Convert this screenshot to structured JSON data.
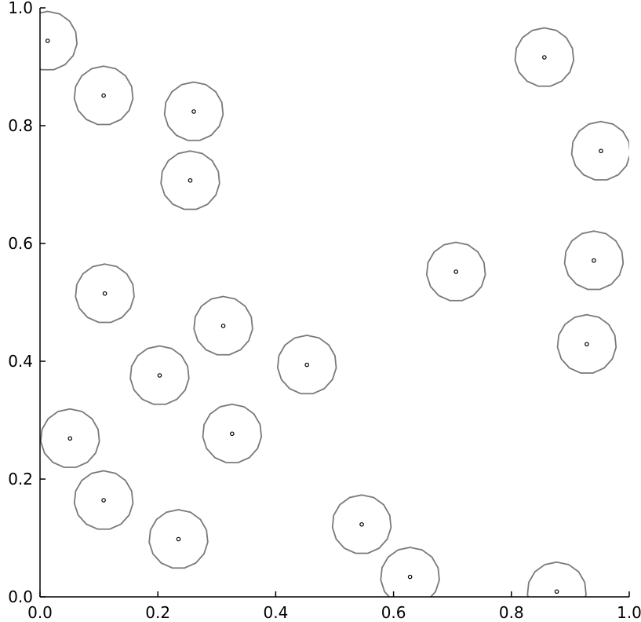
{
  "colors": {
    "ring": "#7a7a7a",
    "point_edge": "#000000",
    "point_fill": "#ffffff",
    "axes": "#000000",
    "background": "#ffffff"
  },
  "chart_data": {
    "type": "scatter",
    "title": "",
    "xlabel": "",
    "ylabel": "",
    "xlim": [
      0.0,
      1.0
    ],
    "ylim": [
      0.0,
      1.0
    ],
    "grid": false,
    "legend": "none",
    "x_ticks": [
      "0.0",
      "0.2",
      "0.4",
      "0.6",
      "0.8",
      "1.0"
    ],
    "y_ticks": [
      "0.0",
      "0.2",
      "0.4",
      "0.6",
      "0.8",
      "1.0"
    ],
    "ring_radius": 0.05,
    "ring_sides": 15,
    "points": [
      {
        "x": 0.013,
        "y": 0.944
      },
      {
        "x": 0.108,
        "y": 0.851
      },
      {
        "x": 0.261,
        "y": 0.824
      },
      {
        "x": 0.255,
        "y": 0.707
      },
      {
        "x": 0.856,
        "y": 0.916
      },
      {
        "x": 0.952,
        "y": 0.757
      },
      {
        "x": 0.94,
        "y": 0.571
      },
      {
        "x": 0.706,
        "y": 0.552
      },
      {
        "x": 0.11,
        "y": 0.515
      },
      {
        "x": 0.311,
        "y": 0.46
      },
      {
        "x": 0.928,
        "y": 0.429
      },
      {
        "x": 0.203,
        "y": 0.376
      },
      {
        "x": 0.453,
        "y": 0.394
      },
      {
        "x": 0.051,
        "y": 0.269
      },
      {
        "x": 0.326,
        "y": 0.277
      },
      {
        "x": 0.108,
        "y": 0.164
      },
      {
        "x": 0.235,
        "y": 0.098
      },
      {
        "x": 0.546,
        "y": 0.123
      },
      {
        "x": 0.628,
        "y": 0.034
      },
      {
        "x": 0.877,
        "y": 0.009
      }
    ]
  }
}
